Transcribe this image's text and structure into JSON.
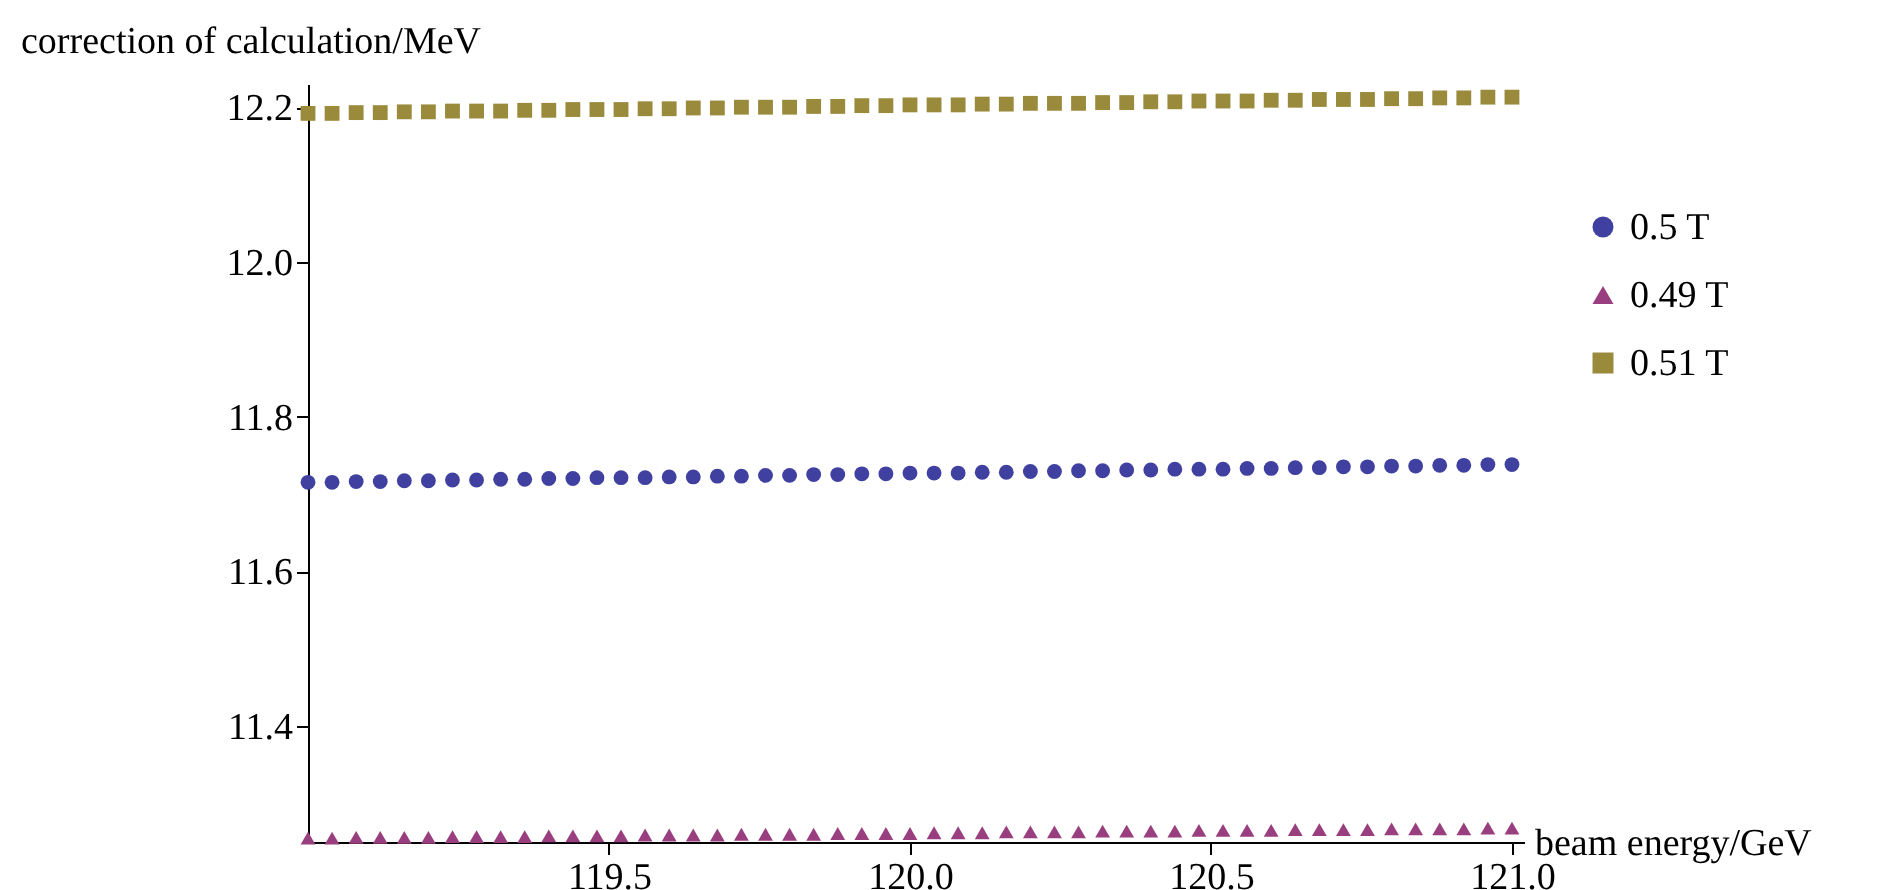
{
  "chart_data": {
    "type": "scatter",
    "xlabel": "beam energy/GeV",
    "ylabel": "correction of calculation/MeV",
    "x": [
      119,
      119.04,
      119.08,
      119.12,
      119.16,
      119.2,
      119.24,
      119.28,
      119.32,
      119.36,
      119.4,
      119.44,
      119.48,
      119.52,
      119.56,
      119.6,
      119.64,
      119.68,
      119.72,
      119.76,
      119.8,
      119.84,
      119.88,
      119.92,
      119.96,
      120,
      120.04,
      120.08,
      120.12,
      120.16,
      120.2,
      120.24,
      120.28,
      120.32,
      120.36,
      120.4,
      120.44,
      120.48,
      120.52,
      120.56,
      120.6,
      120.64,
      120.68,
      120.72,
      120.76,
      120.8,
      120.84,
      120.88,
      120.92,
      120.96,
      121
    ],
    "series": [
      {
        "name": "0.5 T",
        "color": "#4040a0",
        "marker": "circle",
        "values": [
          11.715,
          11.715,
          11.716,
          11.716,
          11.717,
          11.717,
          11.718,
          11.718,
          11.719,
          11.719,
          11.72,
          11.72,
          11.721,
          11.721,
          11.721,
          11.722,
          11.722,
          11.723,
          11.723,
          11.724,
          11.724,
          11.725,
          11.725,
          11.726,
          11.726,
          11.727,
          11.727,
          11.727,
          11.728,
          11.728,
          11.729,
          11.729,
          11.73,
          11.73,
          11.731,
          11.731,
          11.732,
          11.732,
          11.732,
          11.733,
          11.733,
          11.734,
          11.734,
          11.735,
          11.735,
          11.736,
          11.736,
          11.737,
          11.737,
          11.738,
          11.738
        ]
      },
      {
        "name": "0.49 T",
        "color": "#993f7f",
        "marker": "triangle",
        "values": [
          11.255,
          11.255,
          11.256,
          11.256,
          11.256,
          11.256,
          11.257,
          11.257,
          11.257,
          11.257,
          11.258,
          11.258,
          11.258,
          11.258,
          11.259,
          11.259,
          11.259,
          11.259,
          11.26,
          11.26,
          11.26,
          11.26,
          11.261,
          11.261,
          11.261,
          11.261,
          11.262,
          11.262,
          11.262,
          11.263,
          11.263,
          11.263,
          11.263,
          11.264,
          11.264,
          11.264,
          11.264,
          11.265,
          11.265,
          11.265,
          11.265,
          11.266,
          11.266,
          11.266,
          11.266,
          11.267,
          11.267,
          11.267,
          11.267,
          11.268,
          11.268
        ]
      },
      {
        "name": "0.51 T",
        "color": "#9a8a3c",
        "marker": "square",
        "values": [
          12.192,
          12.192,
          12.193,
          12.193,
          12.194,
          12.194,
          12.195,
          12.195,
          12.195,
          12.196,
          12.196,
          12.197,
          12.197,
          12.197,
          12.198,
          12.198,
          12.199,
          12.199,
          12.2,
          12.2,
          12.2,
          12.201,
          12.201,
          12.202,
          12.202,
          12.203,
          12.203,
          12.203,
          12.204,
          12.204,
          12.205,
          12.205,
          12.205,
          12.206,
          12.206,
          12.207,
          12.207,
          12.208,
          12.208,
          12.208,
          12.209,
          12.209,
          12.21,
          12.21,
          12.21,
          12.211,
          12.211,
          12.212,
          12.212,
          12.213,
          12.213
        ]
      }
    ],
    "xlim": [
      119,
      121.02
    ],
    "xticks": [
      119.5,
      {
        "value": 120,
        "label": "120.0"
      },
      120.5,
      {
        "value": 121,
        "label": "121.0"
      }
    ],
    "ylim": [
      11.25,
      12.23
    ],
    "yticks": [
      11.4,
      11.6,
      11.8,
      {
        "value": 12,
        "label": "12.0"
      },
      12.2
    ],
    "legend": "right",
    "grid": false
  }
}
